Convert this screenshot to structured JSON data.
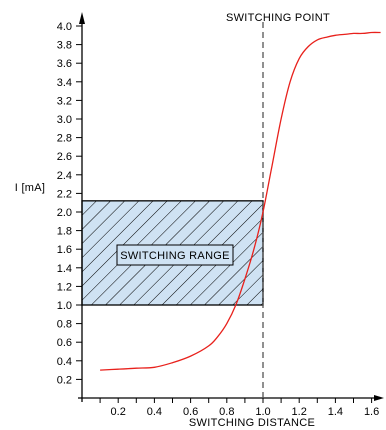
{
  "chart_data": {
    "type": "line",
    "xlabel": "SWITCHING DISTANCE",
    "ylabel": "I [mA]",
    "xlim": [
      0,
      1.65
    ],
    "ylim": [
      0,
      4.1
    ],
    "x_ticks": [
      0.2,
      0.4,
      0.6,
      0.8,
      1.0,
      1.2,
      1.4,
      1.6
    ],
    "x_tick_labels": [
      "0.2",
      "0.4",
      "0.6",
      "0.8",
      "1.0",
      "1.2",
      "1.4",
      "1.6"
    ],
    "y_ticks": [
      0.2,
      0.4,
      0.6,
      0.8,
      1.0,
      1.2,
      1.4,
      1.6,
      1.8,
      2.0,
      2.2,
      2.4,
      2.6,
      2.8,
      3.0,
      3.2,
      3.4,
      3.6,
      3.8,
      4.0
    ],
    "y_tick_labels": [
      "0.2",
      "0.4",
      "0.6",
      "0.8",
      "1.0",
      "1.2",
      "1.4",
      "1.6",
      "1.8",
      "2.0",
      "2.2",
      "2.4",
      "2.6",
      "2.8",
      "3.0",
      "3.2",
      "3.4",
      "3.6",
      "3.8",
      "4.0"
    ],
    "series": [
      {
        "color": "#e8211c",
        "x": [
          0.1,
          0.2,
          0.3,
          0.4,
          0.5,
          0.6,
          0.7,
          0.75,
          0.8,
          0.85,
          0.9,
          0.95,
          1.0,
          1.05,
          1.1,
          1.15,
          1.2,
          1.25,
          1.3,
          1.35,
          1.4,
          1.45,
          1.5,
          1.55,
          1.6,
          1.65
        ],
        "y": [
          0.3,
          0.31,
          0.32,
          0.33,
          0.38,
          0.45,
          0.56,
          0.66,
          0.8,
          1.0,
          1.28,
          1.6,
          2.0,
          2.5,
          3.0,
          3.4,
          3.65,
          3.78,
          3.85,
          3.88,
          3.9,
          3.91,
          3.92,
          3.92,
          3.93,
          3.93
        ]
      }
    ],
    "vline": {
      "x": 1.0,
      "label": "SWITCHING POINT"
    },
    "region": {
      "x_range": [
        0,
        1.0
      ],
      "y_range": [
        1.0,
        2.12
      ],
      "label": "SWITCHING RANGE",
      "fill": "#cfe2f3"
    }
  }
}
